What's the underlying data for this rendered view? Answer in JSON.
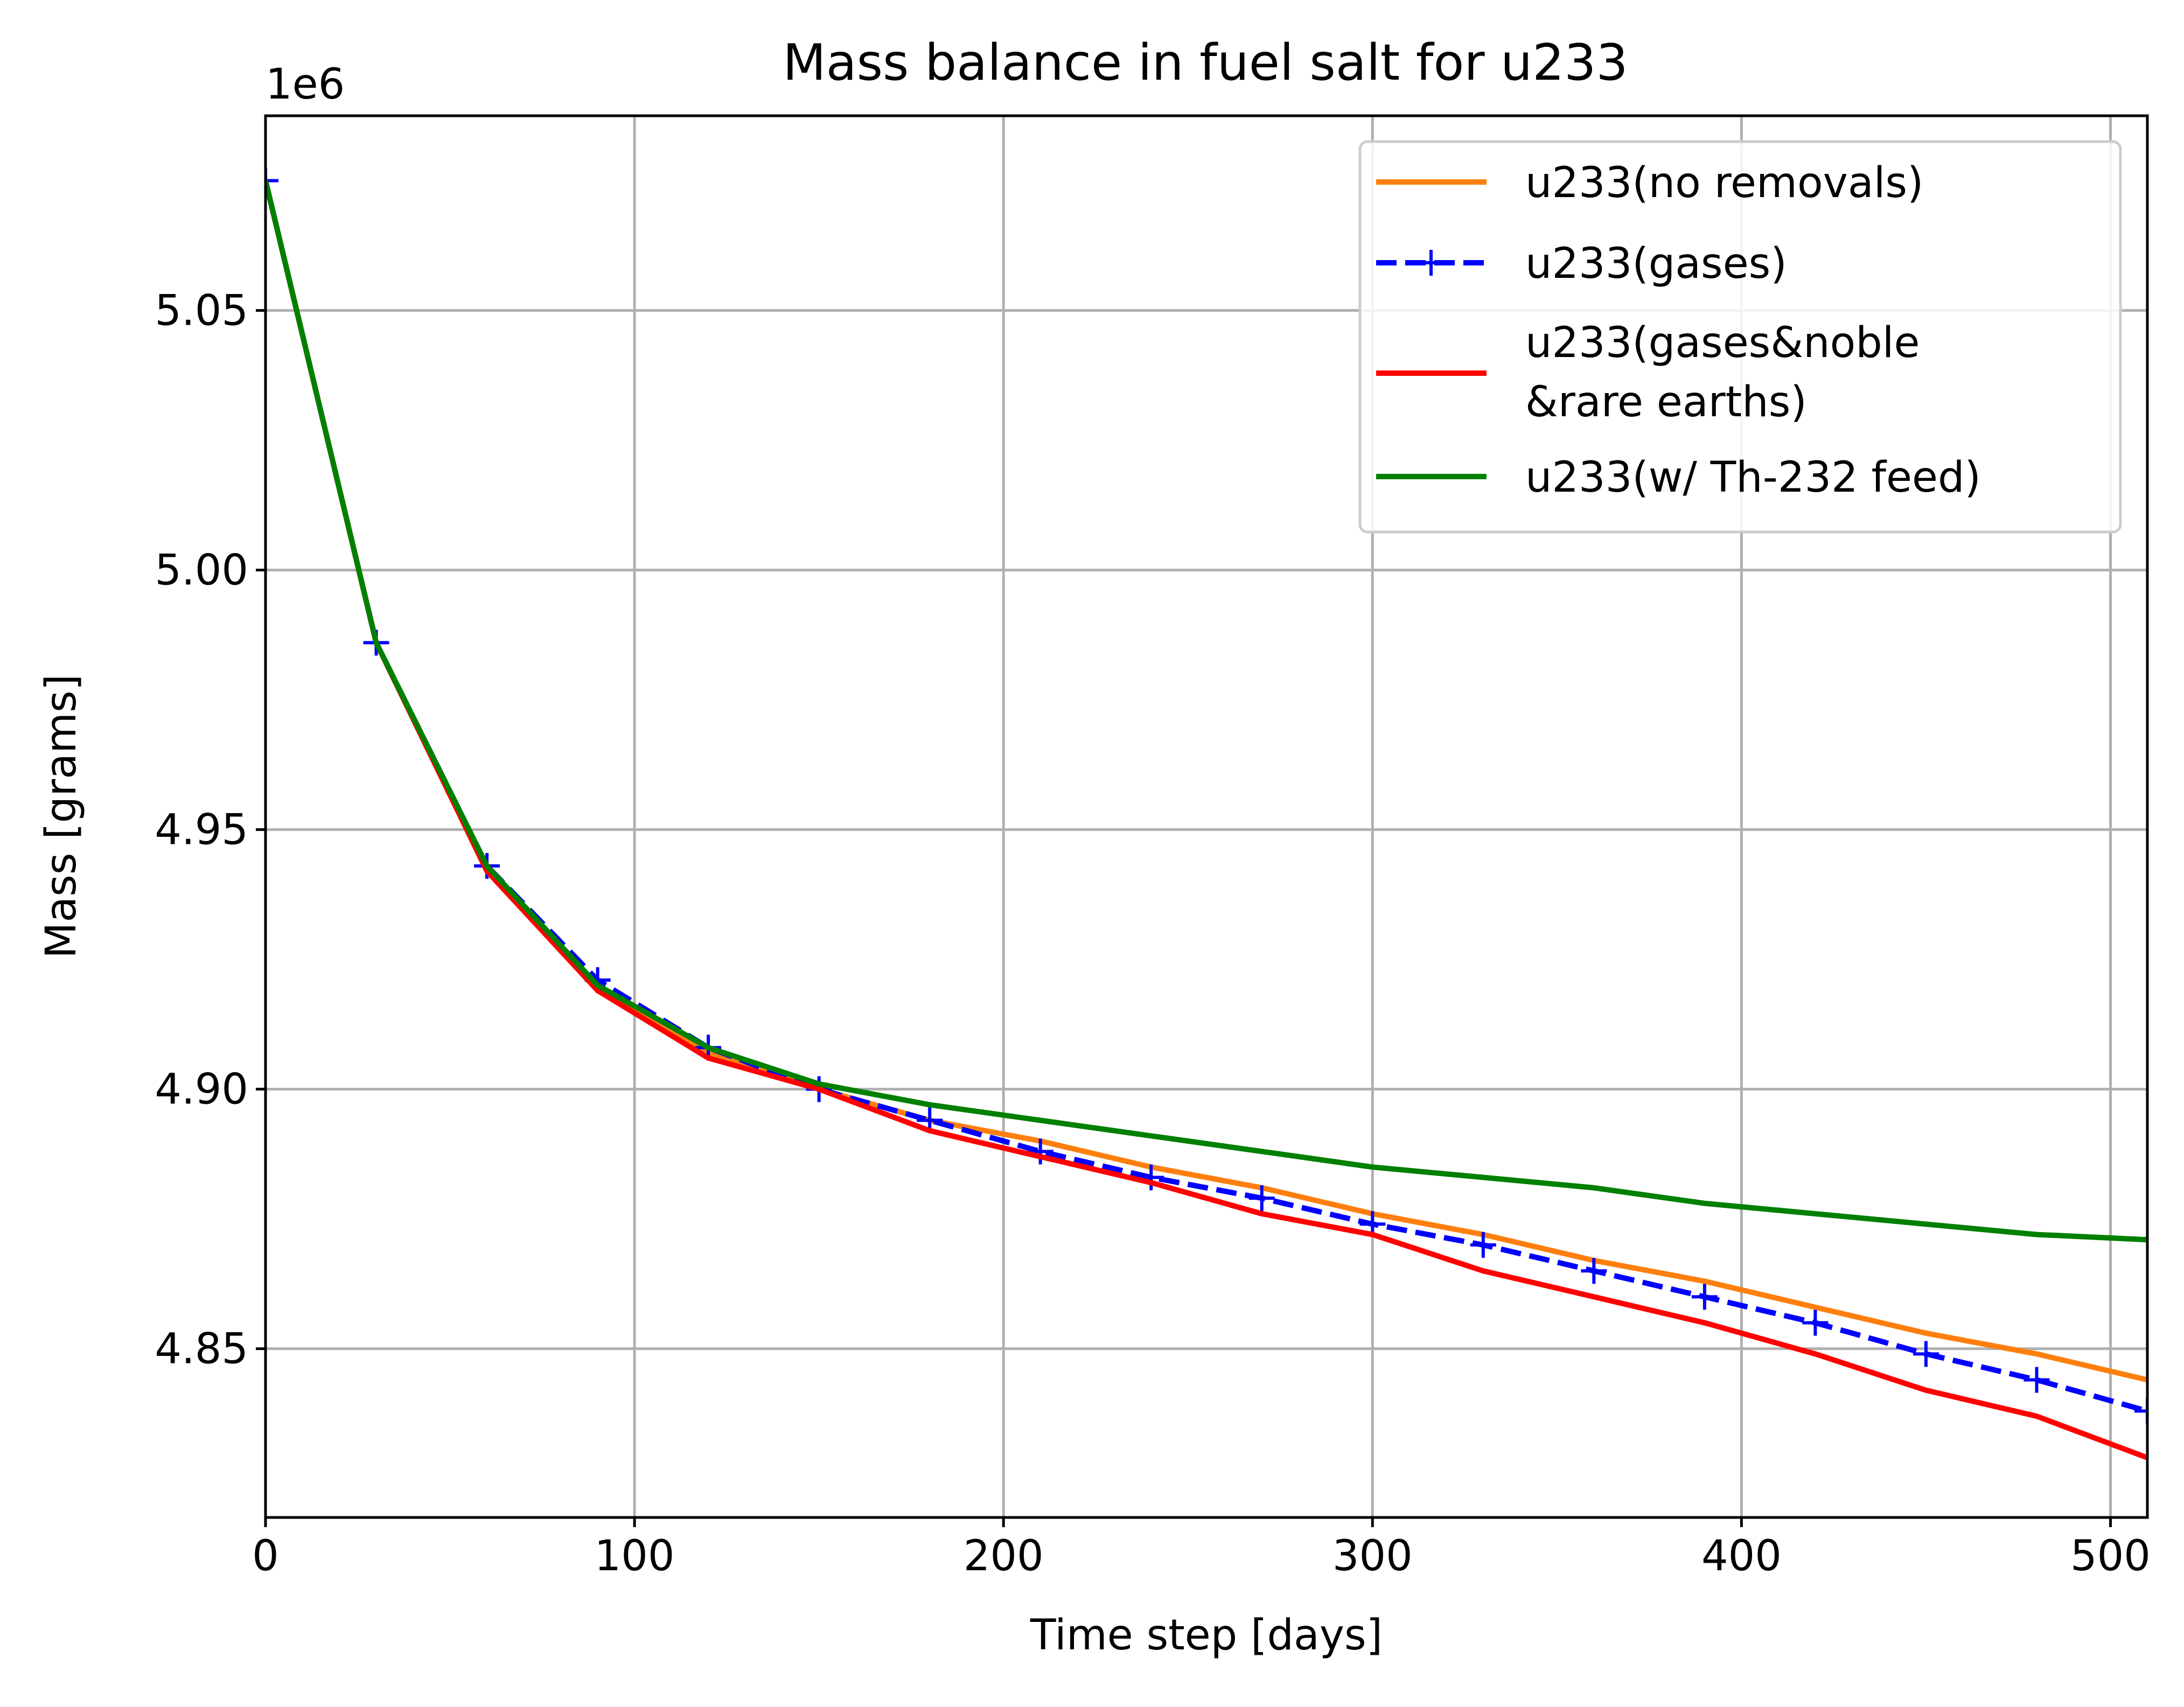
{
  "chart_data": {
    "type": "line",
    "title": "Mass balance in fuel salt for u233",
    "xlabel": "Time step [days]",
    "ylabel": "Mass [grams]",
    "y_offset_label": "1e6",
    "y_multiplier": 1000000,
    "xlim": [
      0,
      510
    ],
    "ylim": [
      4.8175,
      5.0875
    ],
    "xticks": [
      0,
      100,
      200,
      300,
      400,
      500
    ],
    "yticks": [
      4.85,
      4.9,
      4.95,
      5.0,
      5.05
    ],
    "xtick_labels": [
      "0",
      "100",
      "200",
      "300",
      "400",
      "500"
    ],
    "ytick_labels": [
      "4.85",
      "4.90",
      "4.95",
      "5.00",
      "5.05"
    ],
    "grid": true,
    "legend_position": "upper-right",
    "series": [
      {
        "name": "u233(no removals)",
        "color": "#ff7f0e",
        "style": "solid",
        "marker": "none",
        "x": [
          0,
          30,
          60,
          90,
          120,
          150,
          180,
          210,
          240,
          270,
          300,
          330,
          360,
          390,
          420,
          450,
          480,
          510
        ],
        "y": [
          5.075,
          4.986,
          4.942,
          4.92,
          4.907,
          4.9,
          4.894,
          4.89,
          4.885,
          4.881,
          4.876,
          4.872,
          4.867,
          4.863,
          4.858,
          4.853,
          4.849,
          4.844
        ]
      },
      {
        "name": "u233(gases)",
        "color": "#0000ff",
        "style": "dashed",
        "marker": "plus",
        "x": [
          0,
          30,
          60,
          90,
          120,
          150,
          180,
          210,
          240,
          270,
          300,
          330,
          360,
          390,
          420,
          450,
          480,
          510
        ],
        "y": [
          5.075,
          4.986,
          4.943,
          4.921,
          4.908,
          4.9,
          4.894,
          4.888,
          4.883,
          4.879,
          4.874,
          4.87,
          4.865,
          4.86,
          4.855,
          4.849,
          4.844,
          4.838
        ]
      },
      {
        "name": "u233(gases&noble\n&rare earths)",
        "color": "#ff0000",
        "style": "solid",
        "marker": "none",
        "x": [
          0,
          30,
          60,
          90,
          120,
          150,
          180,
          210,
          240,
          270,
          300,
          330,
          360,
          390,
          420,
          450,
          480,
          510
        ],
        "y": [
          5.075,
          4.986,
          4.942,
          4.919,
          4.906,
          4.9,
          4.892,
          4.887,
          4.882,
          4.876,
          4.872,
          4.865,
          4.86,
          4.855,
          4.849,
          4.842,
          4.837,
          4.829
        ]
      },
      {
        "name": "u233(w/ Th-232 feed)",
        "color": "#008000",
        "style": "solid",
        "marker": "none",
        "x": [
          0,
          30,
          60,
          90,
          120,
          150,
          180,
          210,
          240,
          270,
          300,
          330,
          360,
          390,
          420,
          450,
          480,
          510
        ],
        "y": [
          5.075,
          4.986,
          4.943,
          4.92,
          4.908,
          4.901,
          4.897,
          4.894,
          4.891,
          4.888,
          4.885,
          4.883,
          4.881,
          4.878,
          4.876,
          4.874,
          4.872,
          4.871
        ]
      }
    ]
  }
}
